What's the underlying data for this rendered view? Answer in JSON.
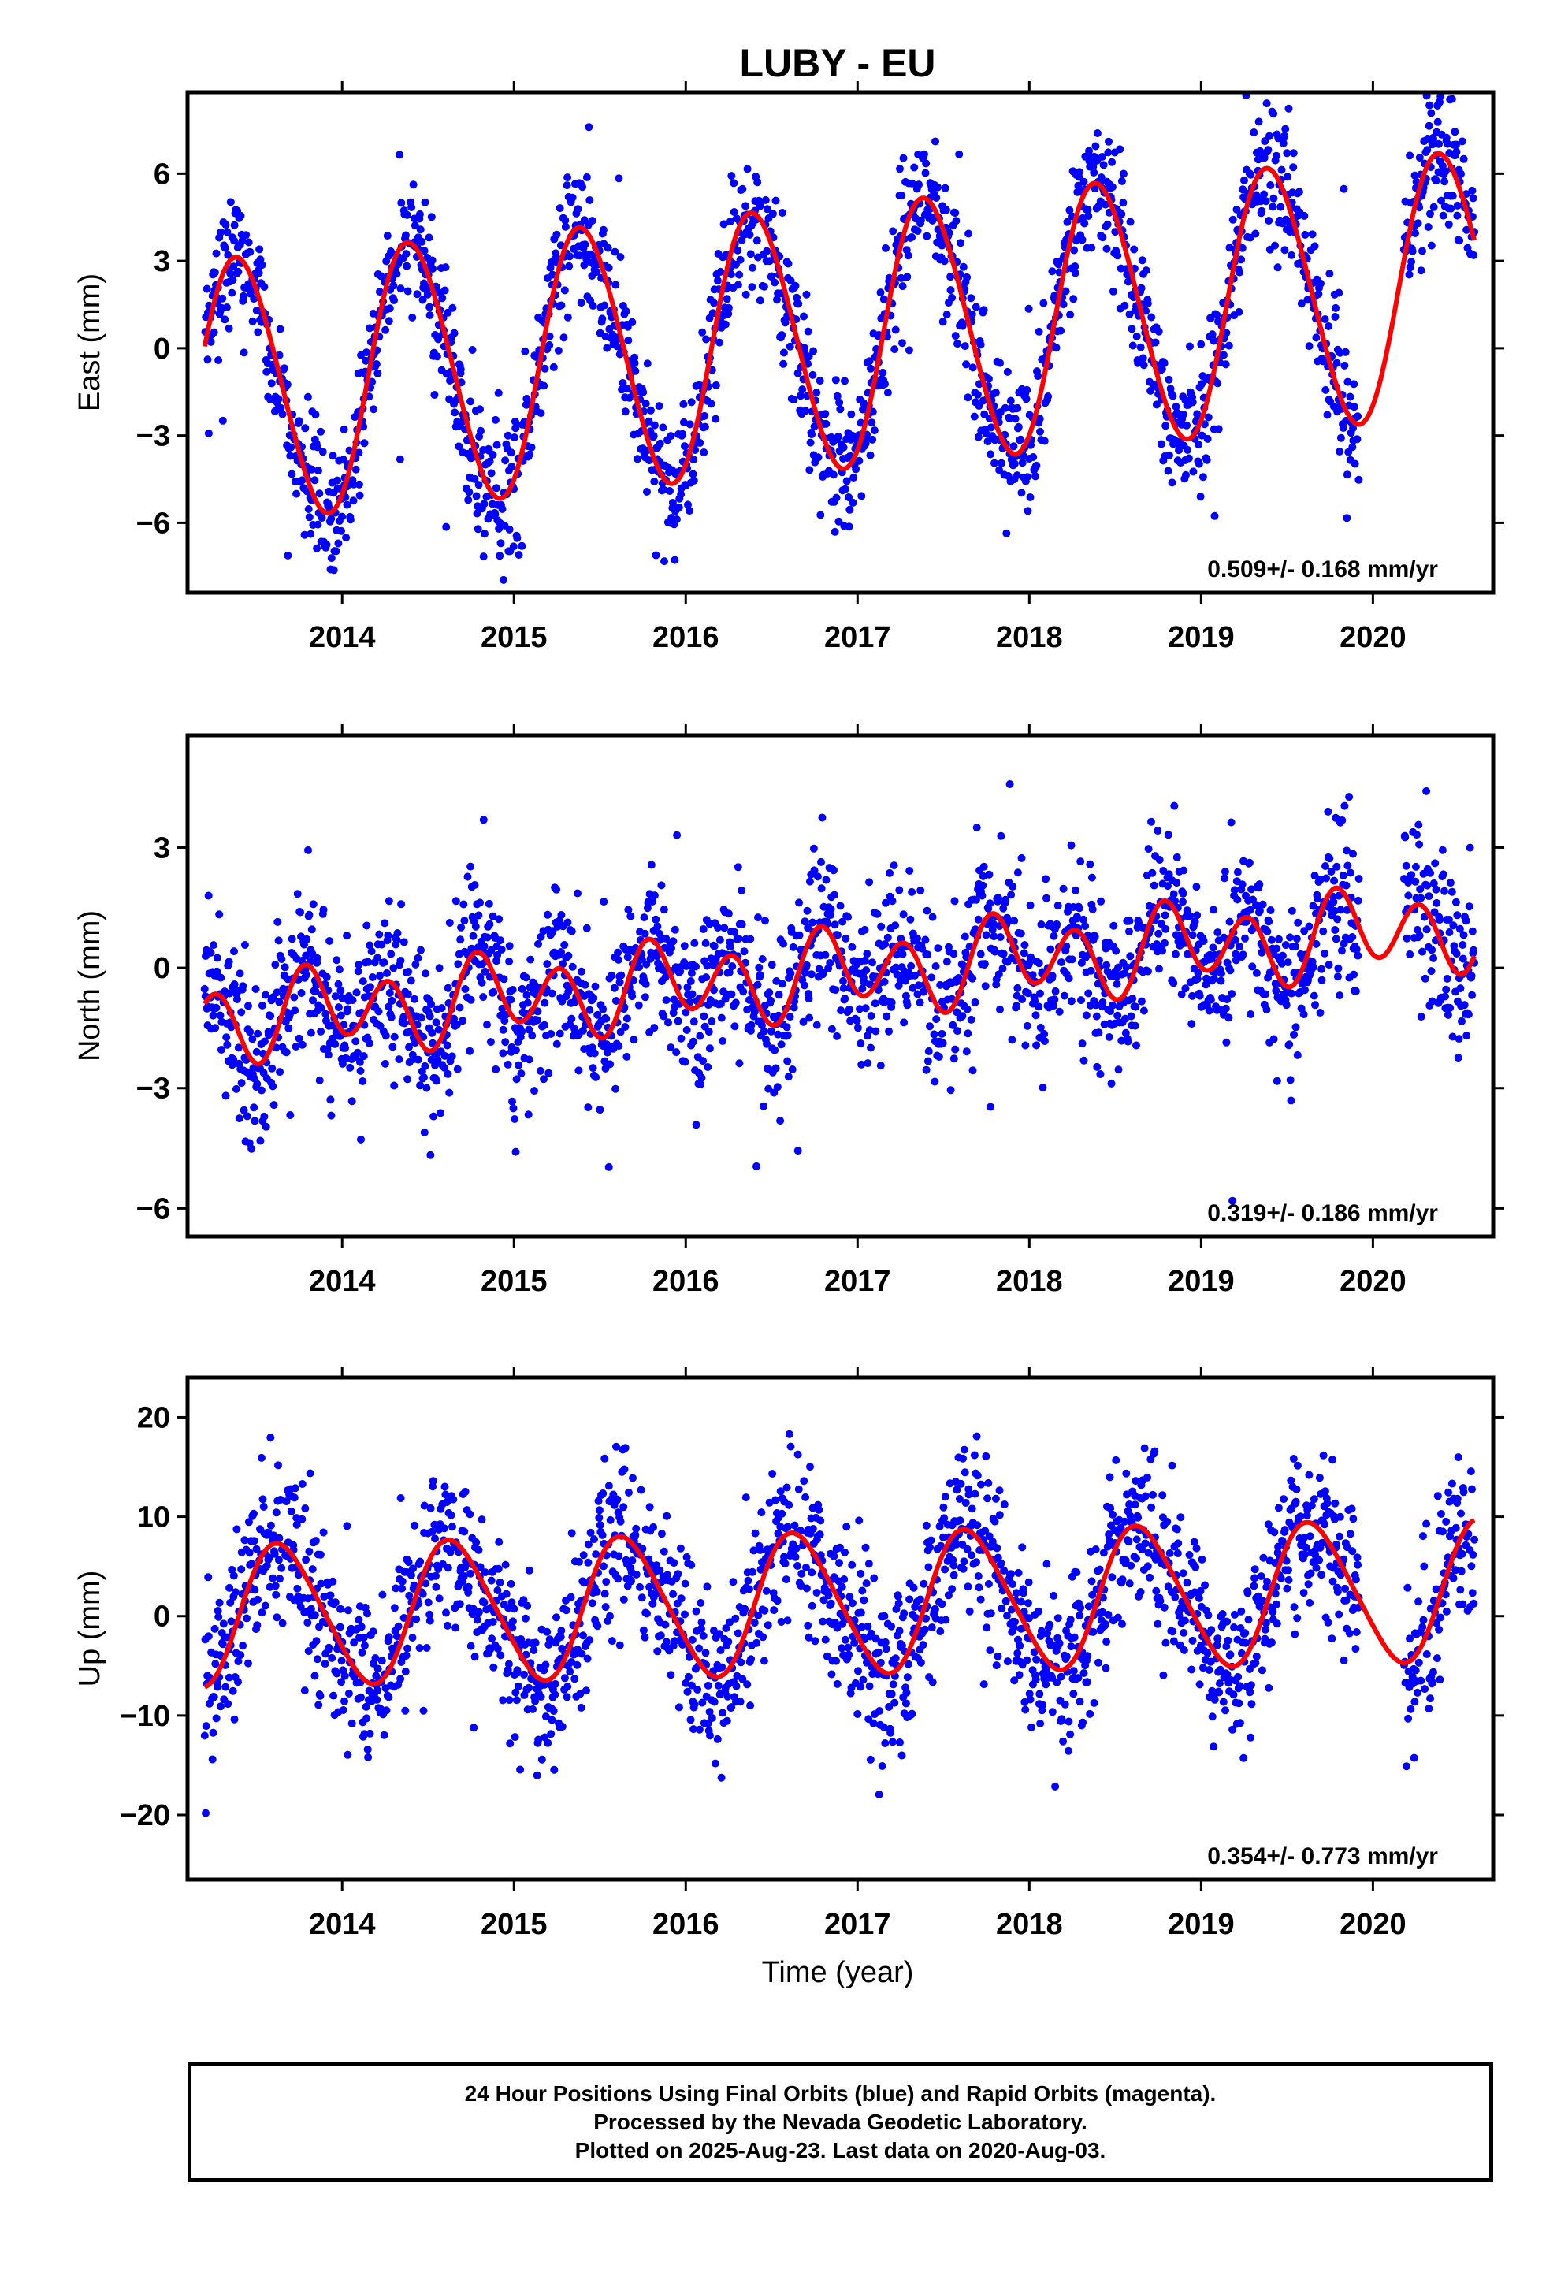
{
  "title": "LUBY - EU",
  "xlabel": "Time (year)",
  "colors": {
    "data": "#0000ff",
    "model": "#ff0000",
    "axis": "#000000"
  },
  "footer": {
    "line1": "24 Hour Positions Using Final Orbits (blue) and Rapid Orbits (magenta).",
    "line2": "Processed by the Nevada Geodetic Laboratory.",
    "line3": "Plotted on 2025-Aug-23. Last data on 2020-Aug-03."
  },
  "chart_data": [
    {
      "type": "scatter",
      "component": "east",
      "ylabel": "East (mm)",
      "xlim": [
        2013.1,
        2020.7
      ],
      "ylim": [
        -8.4,
        8.8
      ],
      "yticks": [
        -6,
        -3,
        0,
        3,
        6
      ],
      "xticks": [
        2014,
        2015,
        2016,
        2017,
        2018,
        2019,
        2020
      ],
      "x_tick_labels": [
        "2014",
        "2015",
        "2016",
        "2017",
        "2018",
        "2019",
        "2020"
      ],
      "y_tick_labels": [
        "−6",
        "−3",
        "0",
        "3",
        "6"
      ],
      "rate_label": "0.509+/- 0.168 mm/yr",
      "data_start": 2013.2,
      "data_end": 2020.59,
      "data_gap": [
        2019.92,
        2020.18
      ],
      "model": {
        "mean_start": -1.5,
        "rate": 0.509,
        "annual_amp": 4.5,
        "annual_peak": 0.4,
        "semiannual_amp": 0.3
      },
      "scatter_sigma": 1.2,
      "series": [
        {
          "name": "Final Orbits",
          "color": "#0000ff"
        },
        {
          "name": "Rapid Orbits",
          "color": "#ff00ff"
        },
        {
          "name": "Model fit",
          "color": "#ff0000"
        }
      ]
    },
    {
      "type": "scatter",
      "component": "north",
      "ylabel": "North (mm)",
      "xlim": [
        2013.1,
        2020.7
      ],
      "ylim": [
        -6.7,
        5.8
      ],
      "yticks": [
        -6,
        -3,
        0,
        3
      ],
      "xticks": [
        2014,
        2015,
        2016,
        2017,
        2018,
        2019,
        2020
      ],
      "x_tick_labels": [
        "2014",
        "2015",
        "2016",
        "2017",
        "2018",
        "2019",
        "2020"
      ],
      "y_tick_labels": [
        "−6",
        "−3",
        "0",
        "3"
      ],
      "rate_label": "0.319+/- 0.186 mm/yr",
      "data_start": 2013.2,
      "data_end": 2020.59,
      "data_gap": [
        2019.92,
        2020.18
      ],
      "model": {
        "mean_start": -1.3,
        "rate": 0.319,
        "annual_amp": 0.4,
        "annual_peak": 0.9,
        "semiannual_amp": 0.9
      },
      "scatter_sigma": 1.0,
      "series": [
        {
          "name": "Final Orbits",
          "color": "#0000ff"
        },
        {
          "name": "Rapid Orbits",
          "color": "#ff00ff"
        },
        {
          "name": "Model fit",
          "color": "#ff0000"
        }
      ]
    },
    {
      "type": "scatter",
      "component": "up",
      "ylabel": "Up (mm)",
      "xlim": [
        2013.1,
        2020.7
      ],
      "ylim": [
        -26.5,
        24.0
      ],
      "yticks": [
        -20,
        -10,
        0,
        10,
        20
      ],
      "xticks": [
        2014,
        2015,
        2016,
        2017,
        2018,
        2019,
        2020
      ],
      "x_tick_labels": [
        "2014",
        "2015",
        "2016",
        "2017",
        "2018",
        "2019",
        "2020"
      ],
      "y_tick_labels": [
        "−20",
        "−10",
        "0",
        "10",
        "20"
      ],
      "rate_label": "0.354+/- 0.773 mm/yr",
      "data_start": 2013.2,
      "data_end": 2020.59,
      "data_gap": [
        2019.92,
        2020.18
      ],
      "model": {
        "mean_start": 0.0,
        "rate": 0.354,
        "annual_amp": 7.0,
        "annual_peak": 0.65,
        "semiannual_amp": 0.8
      },
      "scatter_sigma": 4.2,
      "series": [
        {
          "name": "Final Orbits",
          "color": "#0000ff"
        },
        {
          "name": "Rapid Orbits",
          "color": "#ff00ff"
        },
        {
          "name": "Model fit",
          "color": "#ff0000"
        }
      ]
    }
  ]
}
